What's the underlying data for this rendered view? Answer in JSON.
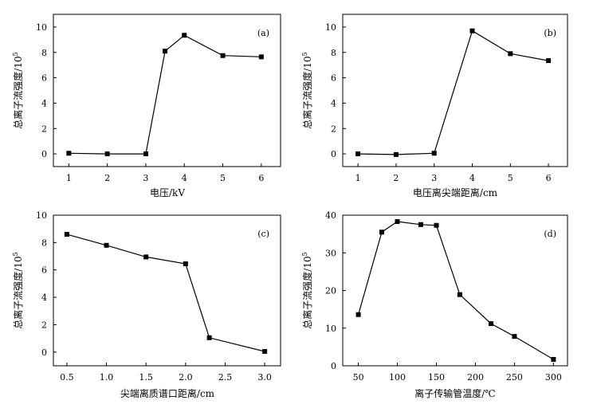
{
  "chart_data": [
    {
      "type": "line",
      "panel_label": "(a)",
      "xlabel": "电压/kV",
      "ylabel": "总离子流强度/10",
      "ylabel_exp": "5",
      "xlim": [
        0.6,
        6.5
      ],
      "ylim": [
        -1,
        11
      ],
      "xticks": [
        1,
        2,
        3,
        4,
        5,
        6
      ],
      "xtick_labels": [
        "1",
        "2",
        "3",
        "4",
        "5",
        "6"
      ],
      "yticks": [
        0,
        2,
        4,
        6,
        8,
        10
      ],
      "ytick_labels": [
        "0",
        "2",
        "4",
        "6",
        "8",
        "10"
      ],
      "grid": false,
      "series": [
        {
          "x": [
            1,
            2,
            3,
            3.5,
            4,
            5,
            6
          ],
          "y": [
            0.05,
            0,
            0,
            8.1,
            9.35,
            7.75,
            7.65
          ]
        }
      ]
    },
    {
      "type": "line",
      "panel_label": "(b)",
      "xlabel": "电压离尖端距离/cm",
      "ylabel": "总离子流强度/10",
      "ylabel_exp": "5",
      "xlim": [
        0.6,
        6.5
      ],
      "ylim": [
        -1,
        11
      ],
      "xticks": [
        1,
        2,
        3,
        4,
        5,
        6
      ],
      "xtick_labels": [
        "1",
        "2",
        "3",
        "4",
        "5",
        "6"
      ],
      "yticks": [
        0,
        2,
        4,
        6,
        8,
        10
      ],
      "ytick_labels": [
        "0",
        "2",
        "4",
        "6",
        "8",
        "10"
      ],
      "grid": false,
      "series": [
        {
          "x": [
            1,
            2,
            3,
            4,
            5,
            6
          ],
          "y": [
            0,
            -0.05,
            0.05,
            9.7,
            7.9,
            7.35
          ]
        }
      ]
    },
    {
      "type": "line",
      "panel_label": "(c)",
      "xlabel": "尖端离质谱口距离/cm",
      "ylabel": "总离子流强度/10",
      "ylabel_exp": "5",
      "xlim": [
        0.33,
        3.2
      ],
      "ylim": [
        -1,
        10
      ],
      "xticks": [
        0.5,
        1.0,
        1.5,
        2.0,
        2.5,
        3.0
      ],
      "xtick_labels": [
        "0.5",
        "1.0",
        "1.5",
        "2.0",
        "2.5",
        "3.0"
      ],
      "yticks": [
        0,
        2,
        4,
        6,
        8,
        10
      ],
      "ytick_labels": [
        "0",
        "2",
        "4",
        "6",
        "8",
        "10"
      ],
      "grid": false,
      "series": [
        {
          "x": [
            0.5,
            1.0,
            1.5,
            2.0,
            2.3,
            3.0
          ],
          "y": [
            8.6,
            7.8,
            6.95,
            6.45,
            1.05,
            0.05
          ]
        }
      ]
    },
    {
      "type": "line",
      "panel_label": "(d)",
      "xlabel": "离子传输管温度/℃",
      "ylabel": "总离子流强度/10",
      "ylabel_exp": "5",
      "xlim": [
        30,
        318
      ],
      "ylim": [
        0,
        40
      ],
      "xticks": [
        50,
        100,
        150,
        200,
        250,
        300
      ],
      "xtick_labels": [
        "50",
        "100",
        "150",
        "200",
        "250",
        "300"
      ],
      "yticks": [
        0,
        10,
        20,
        30,
        40
      ],
      "ytick_labels": [
        "0",
        "10",
        "20",
        "30",
        "40"
      ],
      "grid": false,
      "series": [
        {
          "x": [
            50,
            80,
            100,
            130,
            150,
            180,
            220,
            250,
            300
          ],
          "y": [
            13.6,
            35.5,
            38.3,
            37.5,
            37.3,
            18.9,
            11.2,
            7.8,
            1.7
          ]
        }
      ]
    }
  ]
}
